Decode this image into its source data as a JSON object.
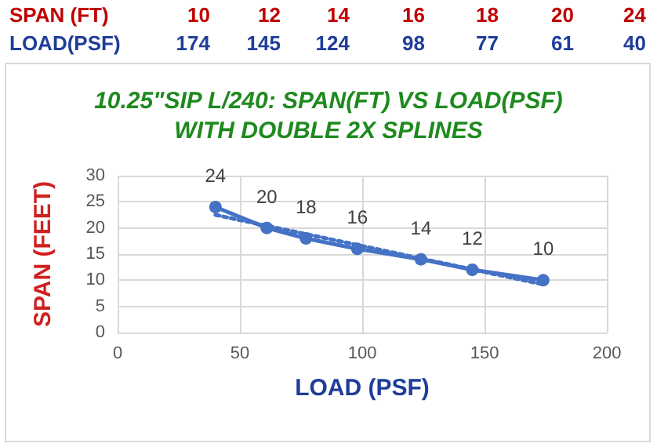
{
  "chart_data": {
    "type": "line",
    "title": "10.25\"SIP L/240: SPAN(FT) VS LOAD(PSF)",
    "subtitle": "WITH DOUBLE 2X SPLINES",
    "xlabel": "LOAD (PSF)",
    "ylabel": "SPAN (FEET)",
    "annotations": [
      "SPAN (FT)",
      "LOAD(PSF)",
      "174",
      "145",
      "124",
      "98",
      "77",
      "61",
      "40"
    ],
    "x": [
      174,
      145,
      124,
      98,
      77,
      61,
      40
    ],
    "series": [
      {
        "color": "#4472c4",
        "values": [
          10,
          12,
          14,
          16,
          18,
          20,
          24
        ],
        "value_labels": [
          "10",
          "12",
          "14",
          "16",
          "18",
          "20",
          "24"
        ],
        "marker": "circle",
        "line_style": "solid"
      },
      {
        "type": "line",
        "color": "#4472c4",
        "x": [
          40,
          174
        ],
        "values": [
          22.5,
          9.2
        ],
        "marker": "none",
        "line_style": "dotted"
      }
    ],
    "xlim": [
      0,
      200
    ],
    "xticks": [
      0,
      50,
      100,
      150,
      200
    ],
    "ylim": [
      0,
      30
    ],
    "yticks": [
      0,
      5,
      10,
      15,
      20,
      25,
      30
    ],
    "grid": true
  }
}
